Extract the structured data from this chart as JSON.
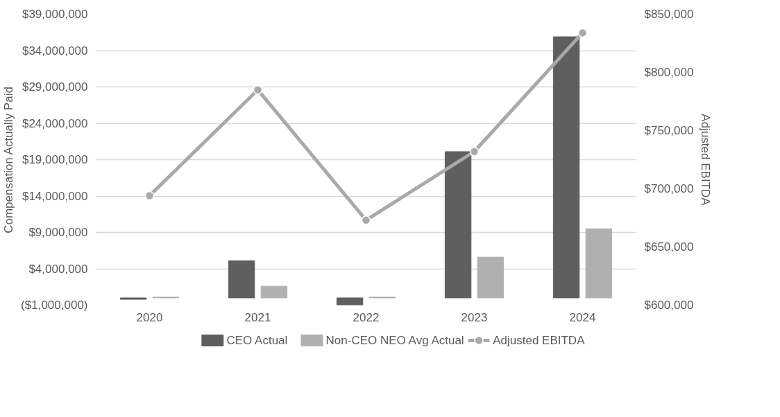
{
  "chart_data": {
    "type": "bar",
    "ylabel": "Compensation Actually Paid",
    "y2label": "Adjusted EBITDA",
    "categories": [
      "2020",
      "2021",
      "2022",
      "2023",
      "2024"
    ],
    "series": [
      {
        "name": "CEO Actual",
        "color": "#5f5f5f",
        "values": [
          -200000,
          5100000,
          -1000000,
          20100000,
          35900000
        ]
      },
      {
        "name": "Non-CEO NEO Avg Actual",
        "color": "#b0b0b0",
        "values": [
          100000,
          1600000,
          100000,
          5600000,
          9500000
        ]
      },
      {
        "name": "Adjusted EBITDA",
        "type": "line",
        "axis": "y2",
        "color": "#a9a9a9",
        "marker": "circle",
        "values": [
          694000,
          785000,
          673000,
          732000,
          834000
        ]
      }
    ],
    "ylim": [
      -1000000,
      39000000
    ],
    "yticks": [
      {
        "value": -1000000,
        "label": "($1,000,000)"
      },
      {
        "value": 4000000,
        "label": "$4,000,000"
      },
      {
        "value": 9000000,
        "label": "$9,000,000"
      },
      {
        "value": 14000000,
        "label": "$14,000,000"
      },
      {
        "value": 19000000,
        "label": "$19,000,000"
      },
      {
        "value": 24000000,
        "label": "$24,000,000"
      },
      {
        "value": 29000000,
        "label": "$29,000,000"
      },
      {
        "value": 34000000,
        "label": "$34,000,000"
      },
      {
        "value": 39000000,
        "label": "$39,000,000"
      }
    ],
    "y2lim": [
      600000,
      850000
    ],
    "y2ticks": [
      {
        "value": 600000,
        "label": "$600,000"
      },
      {
        "value": 650000,
        "label": "$650,000"
      },
      {
        "value": 700000,
        "label": "$700,000"
      },
      {
        "value": 750000,
        "label": "$750,000"
      },
      {
        "value": 800000,
        "label": "$800,000"
      },
      {
        "value": 850000,
        "label": "$850,000"
      }
    ],
    "grid": "y",
    "legend": "bottom"
  }
}
